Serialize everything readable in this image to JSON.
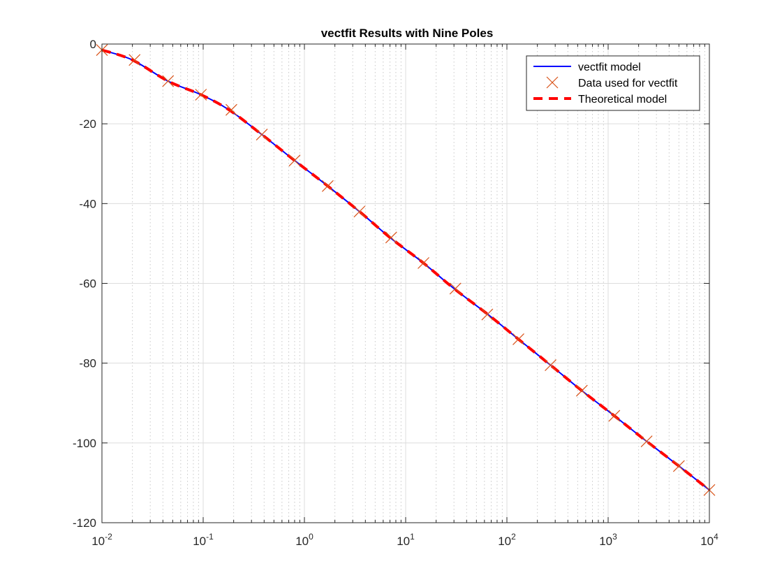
{
  "chart_data": {
    "type": "line",
    "title": "vectfit Results with Nine Poles",
    "xlabel": "",
    "ylabel": "",
    "xscale": "log",
    "xlim": [
      0.01,
      10000
    ],
    "ylim": [
      -120,
      0
    ],
    "x_ticks": [
      {
        "base": "10",
        "exp": "-2"
      },
      {
        "base": "10",
        "exp": "-1"
      },
      {
        "base": "10",
        "exp": "0"
      },
      {
        "base": "10",
        "exp": "1"
      },
      {
        "base": "10",
        "exp": "2"
      },
      {
        "base": "10",
        "exp": "3"
      },
      {
        "base": "10",
        "exp": "4"
      }
    ],
    "y_ticks": [
      "0",
      "-20",
      "-40",
      "-60",
      "-80",
      "-100",
      "-120"
    ],
    "grid": true,
    "minor_grid_x": true,
    "legend_position": "top-right",
    "colors": {
      "model": "#0000ff",
      "data": "#d95319",
      "theory": "#ff0000",
      "grid": "#dcdcdc",
      "axes": "#262626"
    },
    "series": [
      {
        "name": "vectfit model",
        "style": "solid",
        "x": [
          0.01,
          0.02,
          0.045,
          0.095,
          0.18,
          0.38,
          0.8,
          1.7,
          3.5,
          7,
          15,
          30,
          65,
          130,
          270,
          550,
          1150,
          2400,
          5000,
          10000
        ],
        "y": [
          -1.5,
          -4,
          -9.3,
          -12.7,
          -16.5,
          -22.7,
          -29.2,
          -35.6,
          -42,
          -48.5,
          -54.9,
          -61.3,
          -67.8,
          -74,
          -80.5,
          -86.9,
          -93.2,
          -99.6,
          -105.8,
          -111.8
        ]
      },
      {
        "name": "Data used for vectfit",
        "style": "x-markers",
        "x": [
          0.01,
          0.021,
          0.045,
          0.095,
          0.19,
          0.38,
          0.8,
          1.7,
          3.5,
          7.2,
          15,
          31,
          64,
          130,
          270,
          550,
          1150,
          2400,
          5000,
          10000
        ],
        "y": [
          -1.5,
          -4,
          -9.3,
          -12.7,
          -16.5,
          -22.7,
          -29.2,
          -35.6,
          -42,
          -48.5,
          -54.9,
          -61.3,
          -67.8,
          -74,
          -80.5,
          -86.9,
          -93.2,
          -99.6,
          -105.8,
          -111.8
        ]
      },
      {
        "name": "Theoretical model",
        "style": "dashed",
        "x": [
          0.01,
          0.02,
          0.045,
          0.095,
          0.18,
          0.38,
          0.8,
          1.7,
          3.5,
          7,
          15,
          30,
          65,
          130,
          270,
          550,
          1150,
          2400,
          5000,
          10000
        ],
        "y": [
          -1.5,
          -4,
          -9.3,
          -12.7,
          -16.5,
          -22.7,
          -29.2,
          -35.6,
          -42,
          -48.5,
          -54.9,
          -61.3,
          -67.8,
          -74,
          -80.5,
          -86.9,
          -93.2,
          -99.6,
          -105.8,
          -111.8
        ]
      }
    ]
  }
}
